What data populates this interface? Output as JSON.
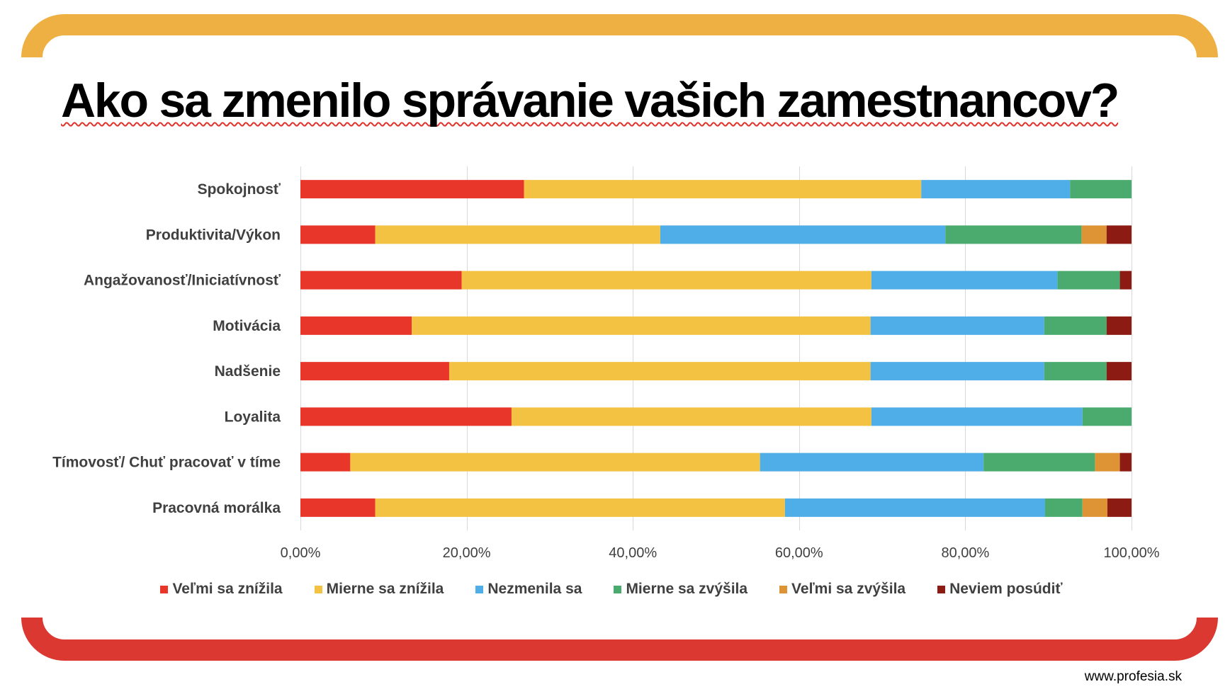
{
  "theme": {
    "top_band_color": "#EEB043",
    "bottom_band_color": "#DA3831"
  },
  "chart_data": {
    "type": "bar",
    "orientation": "horizontal",
    "stacked": true,
    "title": "Ako sa zmenilo správanie vašich zamestnancov?",
    "categories": [
      "Spokojnosť",
      "Produktivita/Výkon",
      "Angažovanosť/Iniciatívnosť",
      "Motivácia",
      "Nadšenie",
      "Loyalita",
      "Tímovosť/ Chuť pracovať v tíme",
      "Pracovná morálka"
    ],
    "series": [
      {
        "name": "Veľmi sa znížila",
        "color": "#E8362A",
        "values": [
          26.9,
          9.0,
          19.4,
          13.4,
          17.9,
          25.4,
          6.0,
          9.0
        ]
      },
      {
        "name": "Mierne sa znížila",
        "color": "#F4C243",
        "values": [
          47.8,
          34.3,
          49.3,
          55.2,
          50.7,
          43.3,
          49.3,
          49.3
        ]
      },
      {
        "name": "Nezmenila sa",
        "color": "#4FAEE8",
        "values": [
          17.9,
          34.3,
          22.4,
          20.9,
          20.9,
          25.4,
          26.9,
          31.3
        ]
      },
      {
        "name": "Mierne sa zvýšila",
        "color": "#4BAB6F",
        "values": [
          7.5,
          16.4,
          7.5,
          7.5,
          7.5,
          6.0,
          13.4,
          4.5
        ]
      },
      {
        "name": "Veľmi sa zvýšila",
        "color": "#DE9435",
        "values": [
          0,
          3.0,
          0,
          0,
          0,
          0,
          3.0,
          3.0
        ]
      },
      {
        "name": "Neviem posúdiť",
        "color": "#8C1B13",
        "values": [
          0,
          3.0,
          1.5,
          3.0,
          3.0,
          0,
          1.5,
          3.0
        ]
      }
    ],
    "xlim": [
      0,
      100
    ],
    "x_ticks": [
      0,
      20,
      40,
      60,
      80,
      100
    ],
    "x_tick_labels": [
      "0,00%",
      "20,00%",
      "40,00%",
      "60,00%",
      "80,00%",
      "100,00%"
    ],
    "grid": "vertical",
    "legend": "bottom"
  },
  "footer": {
    "url": "www.profesia.sk"
  }
}
